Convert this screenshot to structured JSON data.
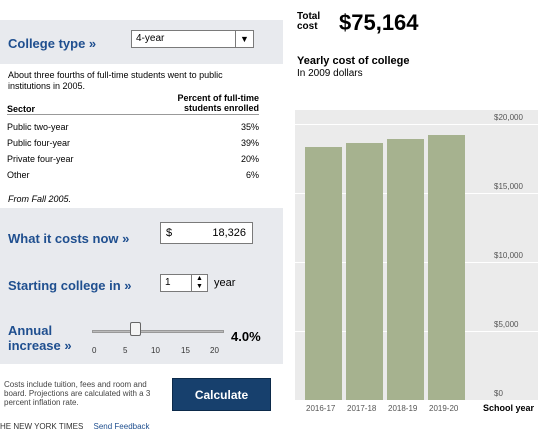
{
  "left": {
    "college_type_label": "College type »",
    "college_type_value": "4-year",
    "intro": "About three fourths of full-time students went to public institutions in 2005.",
    "table_header_sector": "Sector",
    "table_header_percent_line1": "Percent of full-time",
    "table_header_percent_line2": "students enrolled",
    "rows": [
      {
        "sector": "Public two-year",
        "pct": "35%"
      },
      {
        "sector": "Public four-year",
        "pct": "39%"
      },
      {
        "sector": "Private four-year",
        "pct": "20%"
      },
      {
        "sector": "Other",
        "pct": "6%"
      }
    ],
    "source_note": "From Fall 2005.",
    "cost_label": "What it costs now »",
    "cost_currency": "$",
    "cost_value": "18,326",
    "start_label": "Starting college in »",
    "start_value": "1",
    "start_unit": "year",
    "increase_label_line1": "Annual",
    "increase_label_line2": "increase »",
    "slider_ticks": [
      "0",
      "5",
      "10",
      "15",
      "20"
    ],
    "slider_level_pct": 4.0,
    "increase_value": "4.0%",
    "footnote": "Costs include tuition, fees and room and board. Projections are calculated with a 3 percent inflation rate.",
    "calculate_label": "Calculate",
    "credit_text": "HE NEW YORK TIMES",
    "credit_link": "Send Feedback"
  },
  "right": {
    "total_label_line1": "Total",
    "total_label_line2": "cost",
    "total_value": "$75,164",
    "chart_title": "Yearly cost of college",
    "chart_subtitle": "In 2009 dollars",
    "bar_color": "#a6b28f"
  },
  "chart_data": {
    "type": "bar",
    "categories": [
      "2016-17",
      "2017-18",
      "2018-19",
      "2019-20"
    ],
    "values": [
      18300,
      18600,
      18900,
      19200
    ],
    "ylim": [
      0,
      21000
    ],
    "yticks": [
      "$20,000",
      "$15,000",
      "$10,000",
      "$5,000",
      "$0"
    ],
    "xlabel": "School year",
    "grid": true
  }
}
